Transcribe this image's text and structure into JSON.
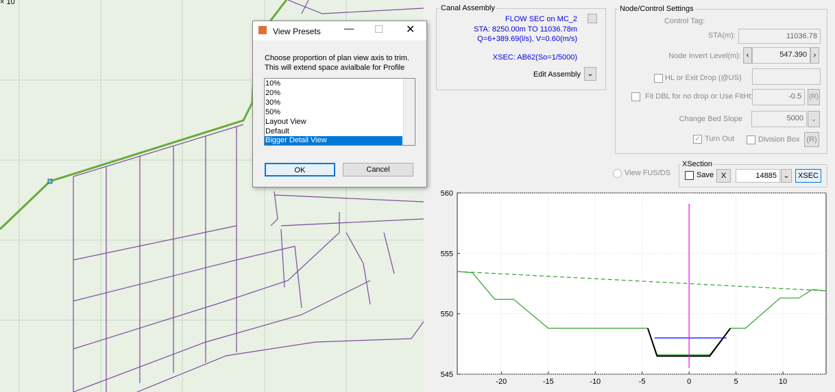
{
  "plan_view": {
    "axis_exponent": "× 10"
  },
  "dialog": {
    "title": "View Presets",
    "instructions": [
      "Choose proportion of plan view axis to trim.",
      "This will extend space avialbale for Profile"
    ],
    "options": [
      "10%",
      "20%",
      "30%",
      "50%",
      "Layout View",
      "Default",
      "Bigger Detail View"
    ],
    "selected": "Bigger Detail View",
    "ok": "OK",
    "cancel": "Cancel"
  },
  "canal_assembly": {
    "title": "Canal Assembly",
    "section": "FLOW SEC on MC_2",
    "station": "STA: 8250.00m TO 11036.78m",
    "flow": "Q=6+389.69(l/s), V=0.60(m/s)",
    "xsec": "XSEC: AB62(So=1/5000)",
    "edit": "Edit Assembly"
  },
  "node_control": {
    "title": "Node/Control Settings",
    "control_tag": "Control Tag:",
    "sta_label": "STA(m):",
    "sta_value": "11036.78",
    "invert_label": "Node Invert Level(m):",
    "invert_value": "547.390",
    "hl_label": "HL or Exit Drop (@US)",
    "fit_label": "Fit DBL for no drop or Use FitHt:",
    "fit_value": "-0.5",
    "fit_button": "(R)",
    "slope_label": "Change Bed Slope",
    "slope_value": "5000",
    "turn_out": "Turn Out",
    "division_box": "Division Box",
    "division_button": "(R)"
  },
  "xsection": {
    "view_fus": "View FUS/DS",
    "title": "XSection",
    "save": "Save",
    "x_button": "X",
    "value": "14885",
    "xsec_button": "XSEC"
  },
  "chart_data": {
    "type": "line",
    "xlim": [
      -24.7,
      14.6
    ],
    "ylim": [
      545,
      560
    ],
    "xticks": [
      -20,
      -15,
      -10,
      -5,
      0,
      5,
      10
    ],
    "yticks": [
      545,
      550,
      555,
      560
    ],
    "grid": true,
    "series": [
      {
        "color": "#2ca02c",
        "x": [
          -24.7,
          -23.1,
          -20.7,
          -18.7,
          -15,
          -4.4,
          -3.5,
          2.2,
          4.4,
          6.0,
          9.7,
          11.7,
          13.1,
          14.6
        ],
        "values": [
          553.5,
          553.4,
          551.2,
          551.2,
          548.8,
          548.8,
          546.6,
          546.6,
          548.8,
          548.8,
          551.3,
          551.3,
          552.0,
          551.9
        ]
      },
      {
        "color": "#000000",
        "x": [
          -4.4,
          -3.4,
          2.2,
          4.4
        ],
        "values": [
          548.8,
          546.5,
          546.5,
          548.8
        ]
      },
      {
        "color": "#0000ff",
        "x": [
          -3.7,
          4.0
        ],
        "values": [
          548.0,
          548.0
        ]
      },
      {
        "color": "#2ca02c",
        "dashed": true,
        "x": [
          -24.7,
          14.6
        ],
        "values": [
          553.5,
          551.9
        ]
      },
      {
        "color": "#ff00ff",
        "x": [
          0,
          0
        ],
        "values": [
          559.1,
          545.5
        ]
      }
    ]
  }
}
